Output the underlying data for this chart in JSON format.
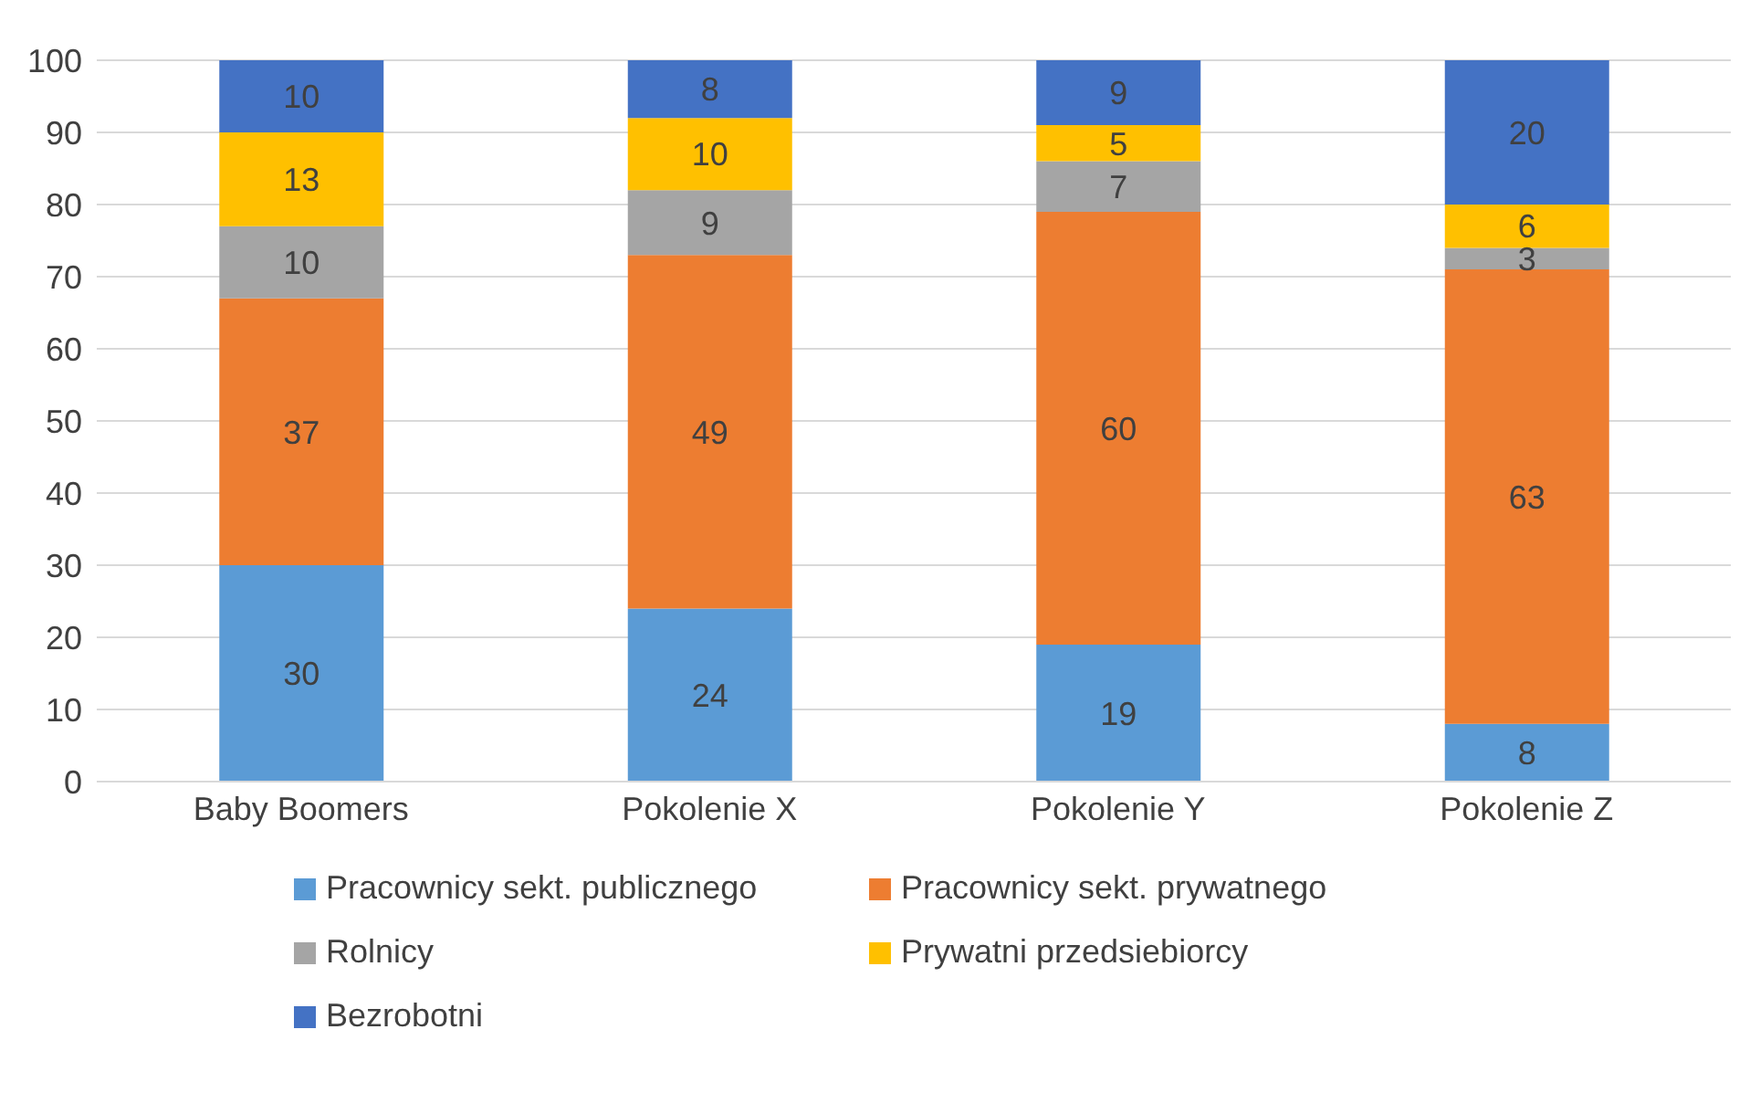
{
  "chart_data": {
    "type": "bar",
    "stacked": true,
    "categories": [
      "Baby Boomers",
      "Pokolenie X",
      "Pokolenie Y",
      "Pokolenie Z"
    ],
    "series": [
      {
        "name": "Pracownicy sekt. publicznego",
        "color": "#5b9bd5",
        "values": [
          30,
          24,
          19,
          8
        ]
      },
      {
        "name": "Pracownicy sekt. prywatnego",
        "color": "#ed7d31",
        "values": [
          37,
          49,
          60,
          63
        ]
      },
      {
        "name": "Rolnicy",
        "color": "#a5a5a5",
        "values": [
          10,
          9,
          7,
          3
        ]
      },
      {
        "name": "Prywatni przedsiebiorcy",
        "color": "#ffc000",
        "values": [
          13,
          10,
          5,
          6
        ]
      },
      {
        "name": "Bezrobotni",
        "color": "#4472c4",
        "values": [
          10,
          8,
          9,
          20
        ]
      }
    ],
    "ylim": [
      0,
      100
    ],
    "yticks": [
      0,
      10,
      20,
      30,
      40,
      50,
      60,
      70,
      80,
      90,
      100
    ],
    "grid": "y",
    "legend": "bottom",
    "data_labels": true
  }
}
